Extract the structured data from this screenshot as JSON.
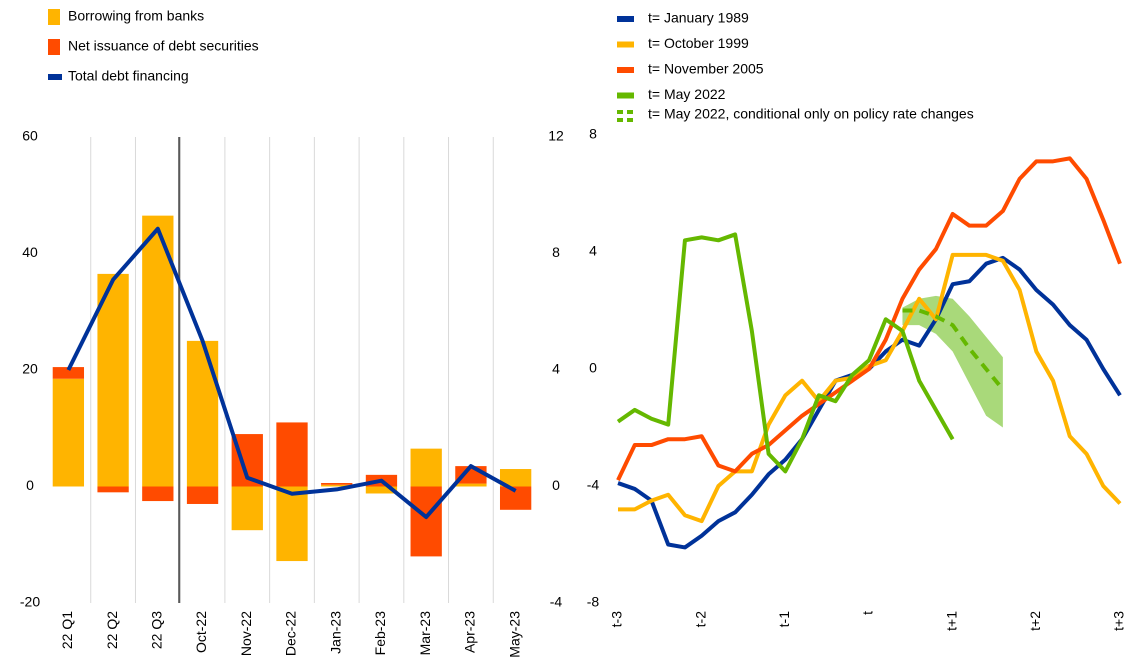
{
  "chart_data": [
    {
      "type": "bar",
      "stacked": true,
      "categories": [
        "22 Q1",
        "22 Q2",
        "22 Q3",
        "Oct-22",
        "Nov-22",
        "Dec-22",
        "Jan-23",
        "Feb-23",
        "Mar-23",
        "Apr-23",
        "May-23"
      ],
      "series": [
        {
          "name": "Borrowing from banks",
          "color": "#ffb400",
          "values": [
            18.5,
            36.5,
            46.5,
            25,
            -7.5,
            -12.8,
            0.3,
            -1.2,
            6.5,
            0.5,
            3
          ]
        },
        {
          "name": "Net issuance of debt securities",
          "color": "#ff4b00",
          "values": [
            2,
            -1,
            -2.5,
            -3,
            9,
            11,
            0.3,
            2,
            -12,
            3,
            -4
          ]
        },
        {
          "name": "Total debt financing",
          "color": "#003299",
          "type": "line",
          "axis": "y2",
          "values": [
            4,
            7.1,
            8.85,
            5,
            0.3,
            -0.25,
            -0.1,
            0.2,
            -1.05,
            0.7,
            -0.15
          ]
        }
      ],
      "ylim": [
        -20,
        60
      ],
      "yticks": [
        -20,
        0,
        20,
        40,
        60
      ],
      "y2lim": [
        -4,
        12
      ],
      "y2ticks": [
        -4,
        0,
        4,
        8,
        12
      ]
    },
    {
      "type": "line",
      "x": [
        -3,
        -2.8,
        -2.6,
        -2.4,
        -2.2,
        -2,
        -1.8,
        -1.6,
        -1.4,
        -1.2,
        -1,
        -0.8,
        -0.6,
        -0.4,
        -0.2,
        0,
        0.2,
        0.4,
        0.6,
        0.8,
        1,
        1.2,
        1.4,
        1.6,
        1.8,
        2,
        2.2,
        2.4,
        2.6,
        2.8,
        3
      ],
      "xlim": [
        -3,
        3
      ],
      "xticks": [
        {
          "value": -3,
          "label": "t-3"
        },
        {
          "value": -2,
          "label": "t-2"
        },
        {
          "value": -1,
          "label": "t-1"
        },
        {
          "value": 0,
          "label": "t"
        },
        {
          "value": 1,
          "label": "t+1"
        },
        {
          "value": 2,
          "label": "t+2"
        },
        {
          "value": 3,
          "label": "t+3"
        }
      ],
      "ylim": [
        -8,
        8
      ],
      "yticks": [
        -8,
        -4,
        0,
        4,
        8
      ],
      "series": [
        {
          "name": "t= January 1989",
          "color": "#003299",
          "values": [
            -3.9,
            -4.1,
            -4.5,
            -6.0,
            -6.1,
            -5.7,
            -5.2,
            -4.9,
            -4.3,
            -3.6,
            -3.1,
            -2.4,
            -1.4,
            -0.4,
            -0.2,
            0,
            0.6,
            1.0,
            0.8,
            1.7,
            2.9,
            3.0,
            3.6,
            3.8,
            3.4,
            2.7,
            2.2,
            1.5,
            1.0,
            0,
            -0.9
          ]
        },
        {
          "name": "t= October 1999",
          "color": "#ffb400",
          "values": [
            -4.8,
            -4.8,
            -4.5,
            -4.3,
            -5.0,
            -5.2,
            -4.0,
            -3.5,
            -3.5,
            -1.9,
            -0.9,
            -0.4,
            -1.1,
            -0.4,
            -0.3,
            0.1,
            0.3,
            1.3,
            2.4,
            1.7,
            3.9,
            3.9,
            3.9,
            3.7,
            2.7,
            0.6,
            -0.4,
            -2.3,
            -2.9,
            -4.0,
            -4.6
          ]
        },
        {
          "name": "t= November 2005",
          "color": "#ff4b00",
          "values": [
            -3.8,
            -2.6,
            -2.6,
            -2.4,
            -2.4,
            -2.3,
            -3.3,
            -3.5,
            -2.9,
            -2.6,
            -2.1,
            -1.6,
            -1.2,
            -0.8,
            -0.4,
            0,
            1.0,
            2.4,
            3.4,
            4.1,
            5.3,
            4.9,
            4.9,
            5.4,
            6.5,
            7.1,
            7.1,
            7.2,
            6.5,
            5.1,
            3.6
          ]
        },
        {
          "name": "t= May 2022",
          "color": "#65b800",
          "values": [
            -1.8,
            -1.4,
            -1.7,
            -1.9,
            4.4,
            4.5,
            4.4,
            4.6,
            1.3,
            -2.9,
            -3.5,
            -2.4,
            -0.9,
            -1.1,
            -0.2,
            0.3,
            1.7,
            1.3,
            -0.4,
            -1.4,
            -2.4,
            null,
            null,
            null,
            null,
            null,
            null,
            null,
            null,
            null,
            null
          ]
        },
        {
          "name": "t= May 2022, conditional only on policy rate changes",
          "color": "#65b800",
          "dashed": true,
          "band_color": "#a9d97a",
          "values": [
            null,
            null,
            null,
            null,
            null,
            null,
            null,
            null,
            null,
            null,
            null,
            null,
            null,
            null,
            null,
            null,
            null,
            2.0,
            2.0,
            1.8,
            1.5,
            0.7,
            0,
            -0.7,
            null,
            null,
            null,
            null,
            null,
            null,
            null
          ],
          "upper": [
            null,
            null,
            null,
            null,
            null,
            null,
            null,
            null,
            null,
            null,
            null,
            null,
            null,
            null,
            null,
            null,
            null,
            2.1,
            2.4,
            2.5,
            2.4,
            1.8,
            1.1,
            0.4,
            null,
            null,
            null,
            null,
            null,
            null,
            null
          ],
          "lower": [
            null,
            null,
            null,
            null,
            null,
            null,
            null,
            null,
            null,
            null,
            null,
            null,
            null,
            null,
            null,
            null,
            null,
            1.5,
            1.5,
            1.2,
            0.6,
            -0.5,
            -1.6,
            -2.0,
            null,
            null,
            null,
            null,
            null,
            null,
            null
          ]
        }
      ]
    }
  ]
}
